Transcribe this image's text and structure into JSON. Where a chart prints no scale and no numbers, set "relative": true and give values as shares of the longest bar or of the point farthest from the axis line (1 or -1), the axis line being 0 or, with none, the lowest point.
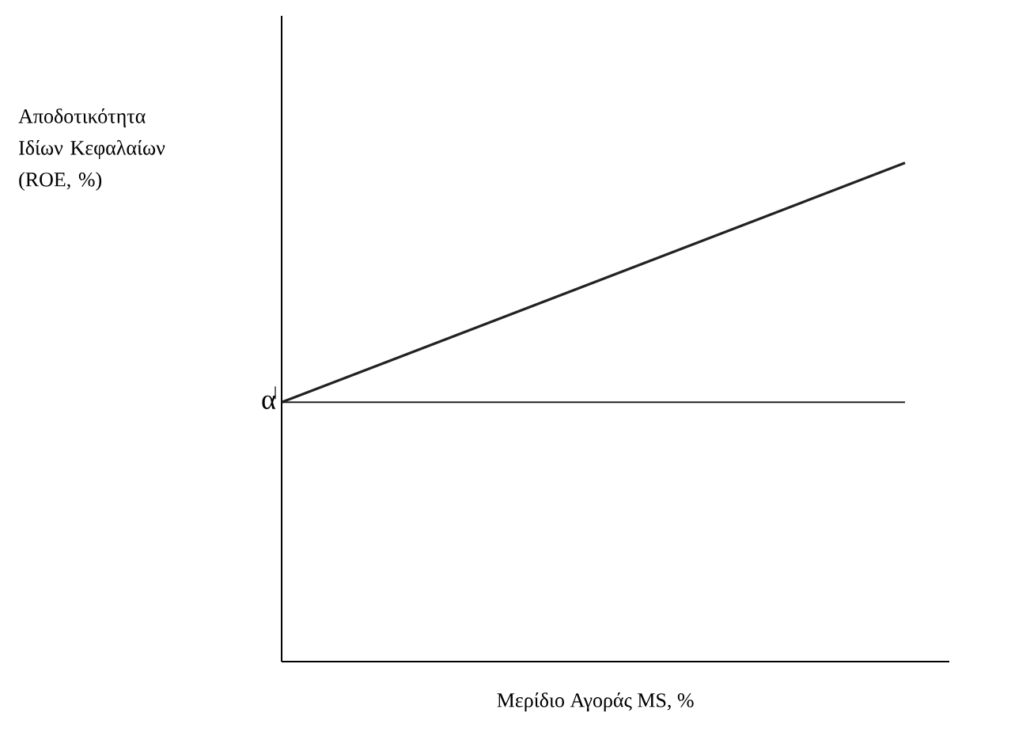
{
  "chart_data": {
    "type": "line",
    "relative": true,
    "xlabel": "Μερίδιο Αγοράς MS, %",
    "ylabel": "Αποδοτικότητα Ιδίων Κεφαλαίων (ROE, %)",
    "categories": [
      null,
      null
    ],
    "series": [
      {
        "color": "#222222",
        "values": [
          0.52,
          1
        ]
      },
      {
        "color": "#222222",
        "values": [
          0.52,
          0.52
        ]
      }
    ],
    "annotations": [
      "α"
    ],
    "marker": "none",
    "line_style": "solid"
  }
}
